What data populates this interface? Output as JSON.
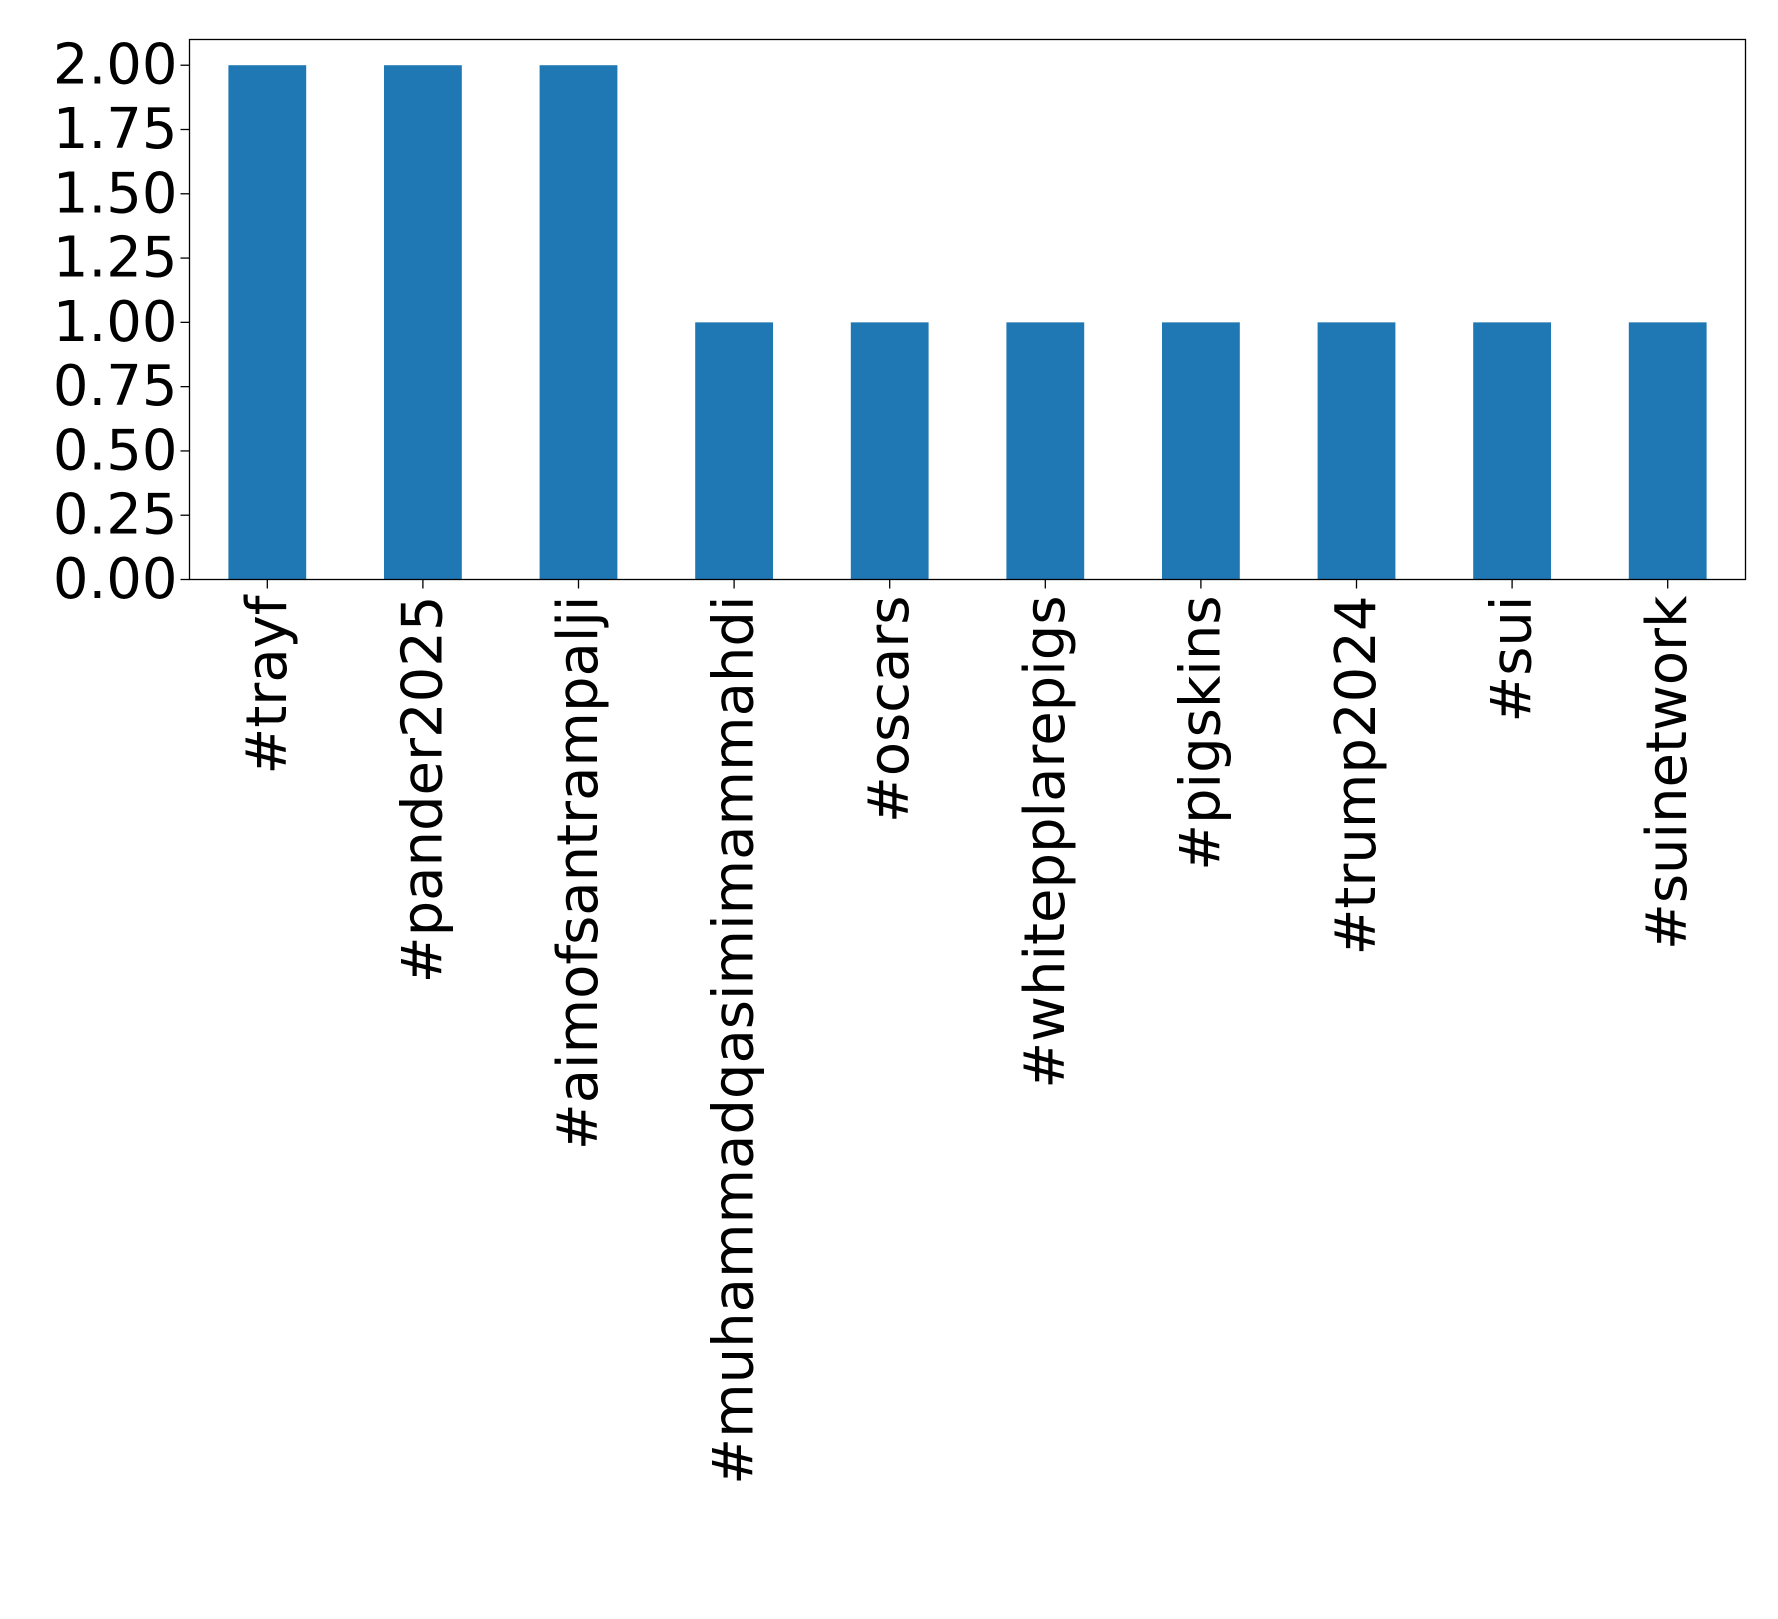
{
  "chart_data": {
    "type": "bar",
    "title": "",
    "xlabel": "",
    "ylabel": "",
    "categories": [
      "#trayf",
      "#pander2025",
      "#aimofsantrampalji",
      "#muhammadqasimimammahdi",
      "#oscars",
      "#whitepplarepigs",
      "#pigskins",
      "#trump2024",
      "#sui",
      "#suinetwork"
    ],
    "values": [
      2,
      2,
      2,
      1,
      1,
      1,
      1,
      1,
      1,
      1
    ],
    "ylim": [
      0,
      2.1
    ],
    "yticks": [
      "0.00",
      "0.25",
      "0.50",
      "0.75",
      "1.00",
      "1.25",
      "1.50",
      "1.75",
      "2.00"
    ],
    "bar_color": "#1f77b4",
    "grid": false,
    "legend": "none"
  }
}
